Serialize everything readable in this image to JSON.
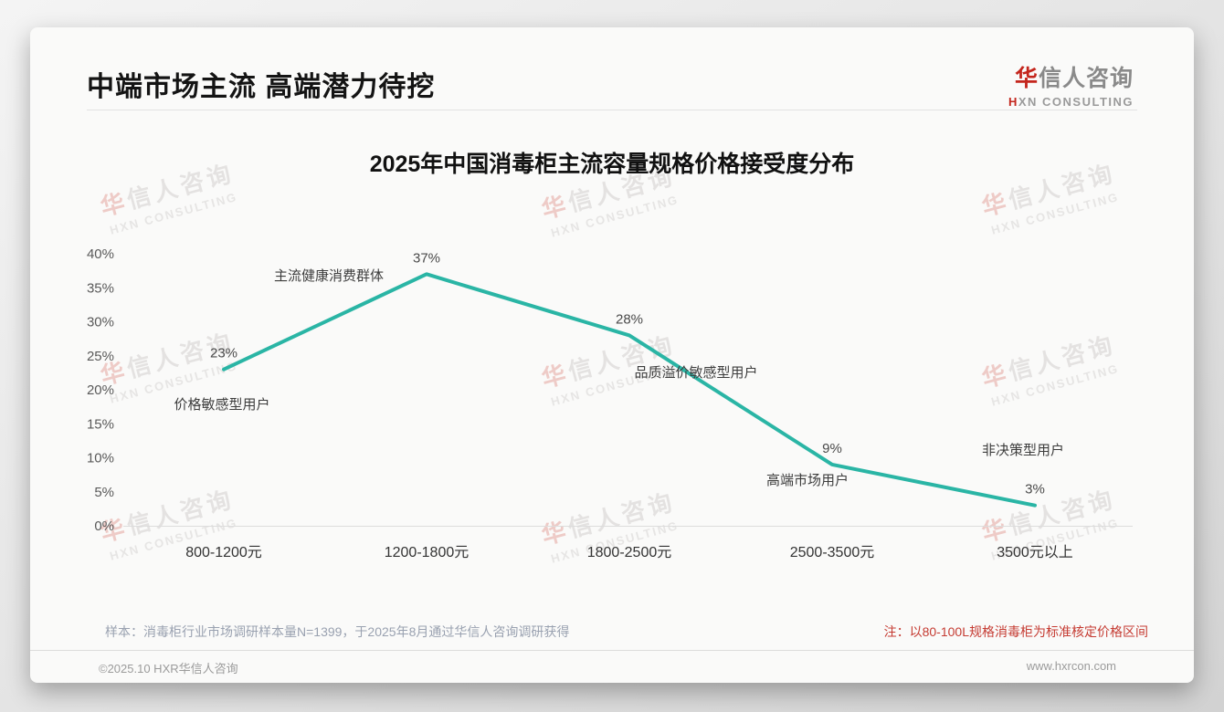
{
  "header": {
    "title": "中端市场主流 高端潜力待挖",
    "logo": {
      "name_accent": "华",
      "name_rest": "信人咨询",
      "tagline_accent": "H",
      "tagline_rest": "XN CONSULTING"
    }
  },
  "chart_data": {
    "type": "line",
    "title": "2025年中国消毒柜主流容量规格价格接受度分布",
    "categories": [
      "800-1200元",
      "1200-1800元",
      "1800-2500元",
      "2500-3500元",
      "3500元以上"
    ],
    "values": [
      23,
      37,
      28,
      9,
      3
    ],
    "value_labels": [
      "23%",
      "37%",
      "28%",
      "9%",
      "3%"
    ],
    "annotations": [
      "价格敏感型用户",
      "主流健康消费群体",
      "品质溢价敏感型用户",
      "高端市场用户",
      "非决策型用户"
    ],
    "xlabel": "",
    "ylabel": "",
    "ylim": [
      0,
      40
    ],
    "yticks": [
      0,
      5,
      10,
      15,
      20,
      25,
      30,
      35,
      40
    ],
    "ytick_labels": [
      "0%",
      "5%",
      "10%",
      "15%",
      "20%",
      "25%",
      "30%",
      "35%",
      "40%"
    ],
    "grid": false,
    "legend": false,
    "line_color": "#2ab5a5"
  },
  "notes": {
    "sample": "样本：消毒柜行业市场调研样本量N=1399，于2025年8月通过华信人咨询调研获得",
    "price_basis": "注：以80-100L规格消毒柜为标准核定价格区间"
  },
  "footer": {
    "copyright": "©2025.10 HXR华信人咨询",
    "website": "www.hxrcon.com"
  },
  "watermark": {
    "line1_accent": "华",
    "line1_rest": "信人咨询",
    "line2": "HXN CONSULTING"
  },
  "colors": {
    "accent_red": "#c4261d",
    "line_teal": "#2ab5a5",
    "note_red": "#c53b32",
    "note_slate": "#99a1b0"
  }
}
